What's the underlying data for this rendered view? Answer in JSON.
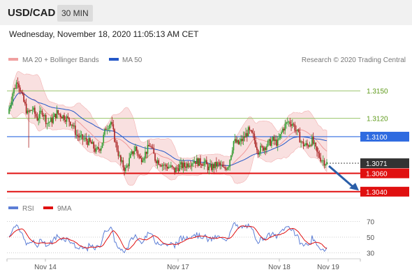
{
  "header": {
    "symbol": "USD/CAD",
    "timeframe": "30 MIN",
    "datetime": "Wednesday, November 18, 2020 11:05:13 AM CET"
  },
  "legend": {
    "ma20_bb": "MA 20 + Bollinger Bands",
    "ma50": "MA 50",
    "credit": "Research © 2020 Trading Central"
  },
  "colors": {
    "bull": "#2e9d2e",
    "bear": "#a81e1e",
    "ma50": "#2458c8",
    "bollinger": "#f4c7c7",
    "resistance": "#9ac46a",
    "pivot": "#2f6be0",
    "support": "#e01010",
    "last": "#333333",
    "rsi": "#5c7ed6",
    "rsi_ma": "#e01010"
  },
  "chart_data": [
    {
      "type": "candlestick",
      "x_ticks": [
        "Nov 14",
        "Nov 17",
        "Nov 18",
        "Nov 19"
      ],
      "ylim": [
        1.3033,
        1.3173
      ],
      "levels": [
        {
          "label": "1.3150",
          "value": 1.315,
          "kind": "resistance"
        },
        {
          "label": "1.3120",
          "value": 1.312,
          "kind": "resistance"
        },
        {
          "label": "1.3100",
          "value": 1.31,
          "kind": "pivot"
        },
        {
          "label": "1.3060",
          "value": 1.306,
          "kind": "support"
        },
        {
          "label": "1.3040",
          "value": 1.304,
          "kind": "support"
        }
      ],
      "last_price": {
        "label": "1.3071",
        "value": 1.3071
      },
      "forecast_arrow": {
        "from": 1.3068,
        "to": 1.3042
      },
      "close_path": [
        1.3125,
        1.3148,
        1.3162,
        1.3142,
        1.3125,
        1.313,
        1.312,
        1.3128,
        1.3115,
        1.3118,
        1.3126,
        1.3123,
        1.312,
        1.3115,
        1.3102,
        1.3098,
        1.3096,
        1.3092,
        1.3084,
        1.309,
        1.311,
        1.3116,
        1.3092,
        1.3072,
        1.3064,
        1.3078,
        1.3088,
        1.3075,
        1.3082,
        1.3091,
        1.3076,
        1.3072,
        1.3068,
        1.3067,
        1.3063,
        1.3068,
        1.3068,
        1.3072,
        1.3074,
        1.3072,
        1.3072,
        1.3065,
        1.3068,
        1.307,
        1.3064,
        1.307,
        1.3095,
        1.3092,
        1.3098,
        1.3106,
        1.31,
        1.3085,
        1.3088,
        1.3092,
        1.3096,
        1.3093,
        1.3108,
        1.3116,
        1.3115,
        1.3104,
        1.3092,
        1.309,
        1.3096,
        1.3082,
        1.3075,
        1.3071
      ]
    },
    {
      "type": "line",
      "name": "RSI",
      "legend": [
        "RSI",
        "9MA"
      ],
      "yticks": [
        70,
        50,
        30
      ],
      "ylim": [
        25,
        75
      ],
      "x_ticks": [
        "Nov 14",
        "Nov 17",
        "Nov 18",
        "Nov 19"
      ]
    }
  ]
}
